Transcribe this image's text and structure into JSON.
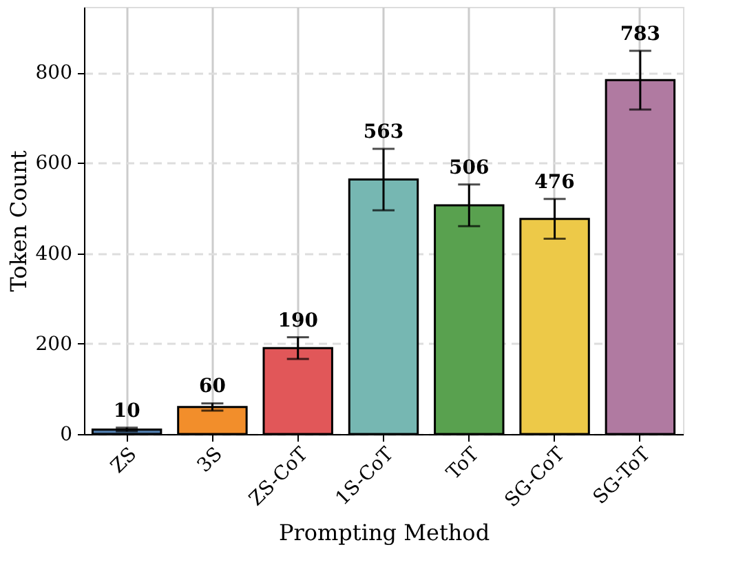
{
  "chart_data": {
    "type": "bar",
    "xlabel": "Prompting Method",
    "ylabel": "Token Count",
    "categories": [
      "ZS",
      "3S",
      "ZS-CoT",
      "1S-CoT",
      "ToT",
      "SG-CoT",
      "SG-ToT"
    ],
    "values": [
      10,
      60,
      190,
      563,
      506,
      476,
      783
    ],
    "errors": [
      4,
      8,
      24,
      68,
      46,
      44,
      65
    ],
    "colors": [
      "#4e79a7",
      "#f28e2b",
      "#e15759",
      "#76b7b2",
      "#59a14f",
      "#edc948",
      "#b07aa1"
    ],
    "ylim": [
      0,
      945
    ],
    "yticks": [
      0,
      200,
      400,
      600,
      800
    ],
    "grid": true,
    "data_labels": true
  }
}
